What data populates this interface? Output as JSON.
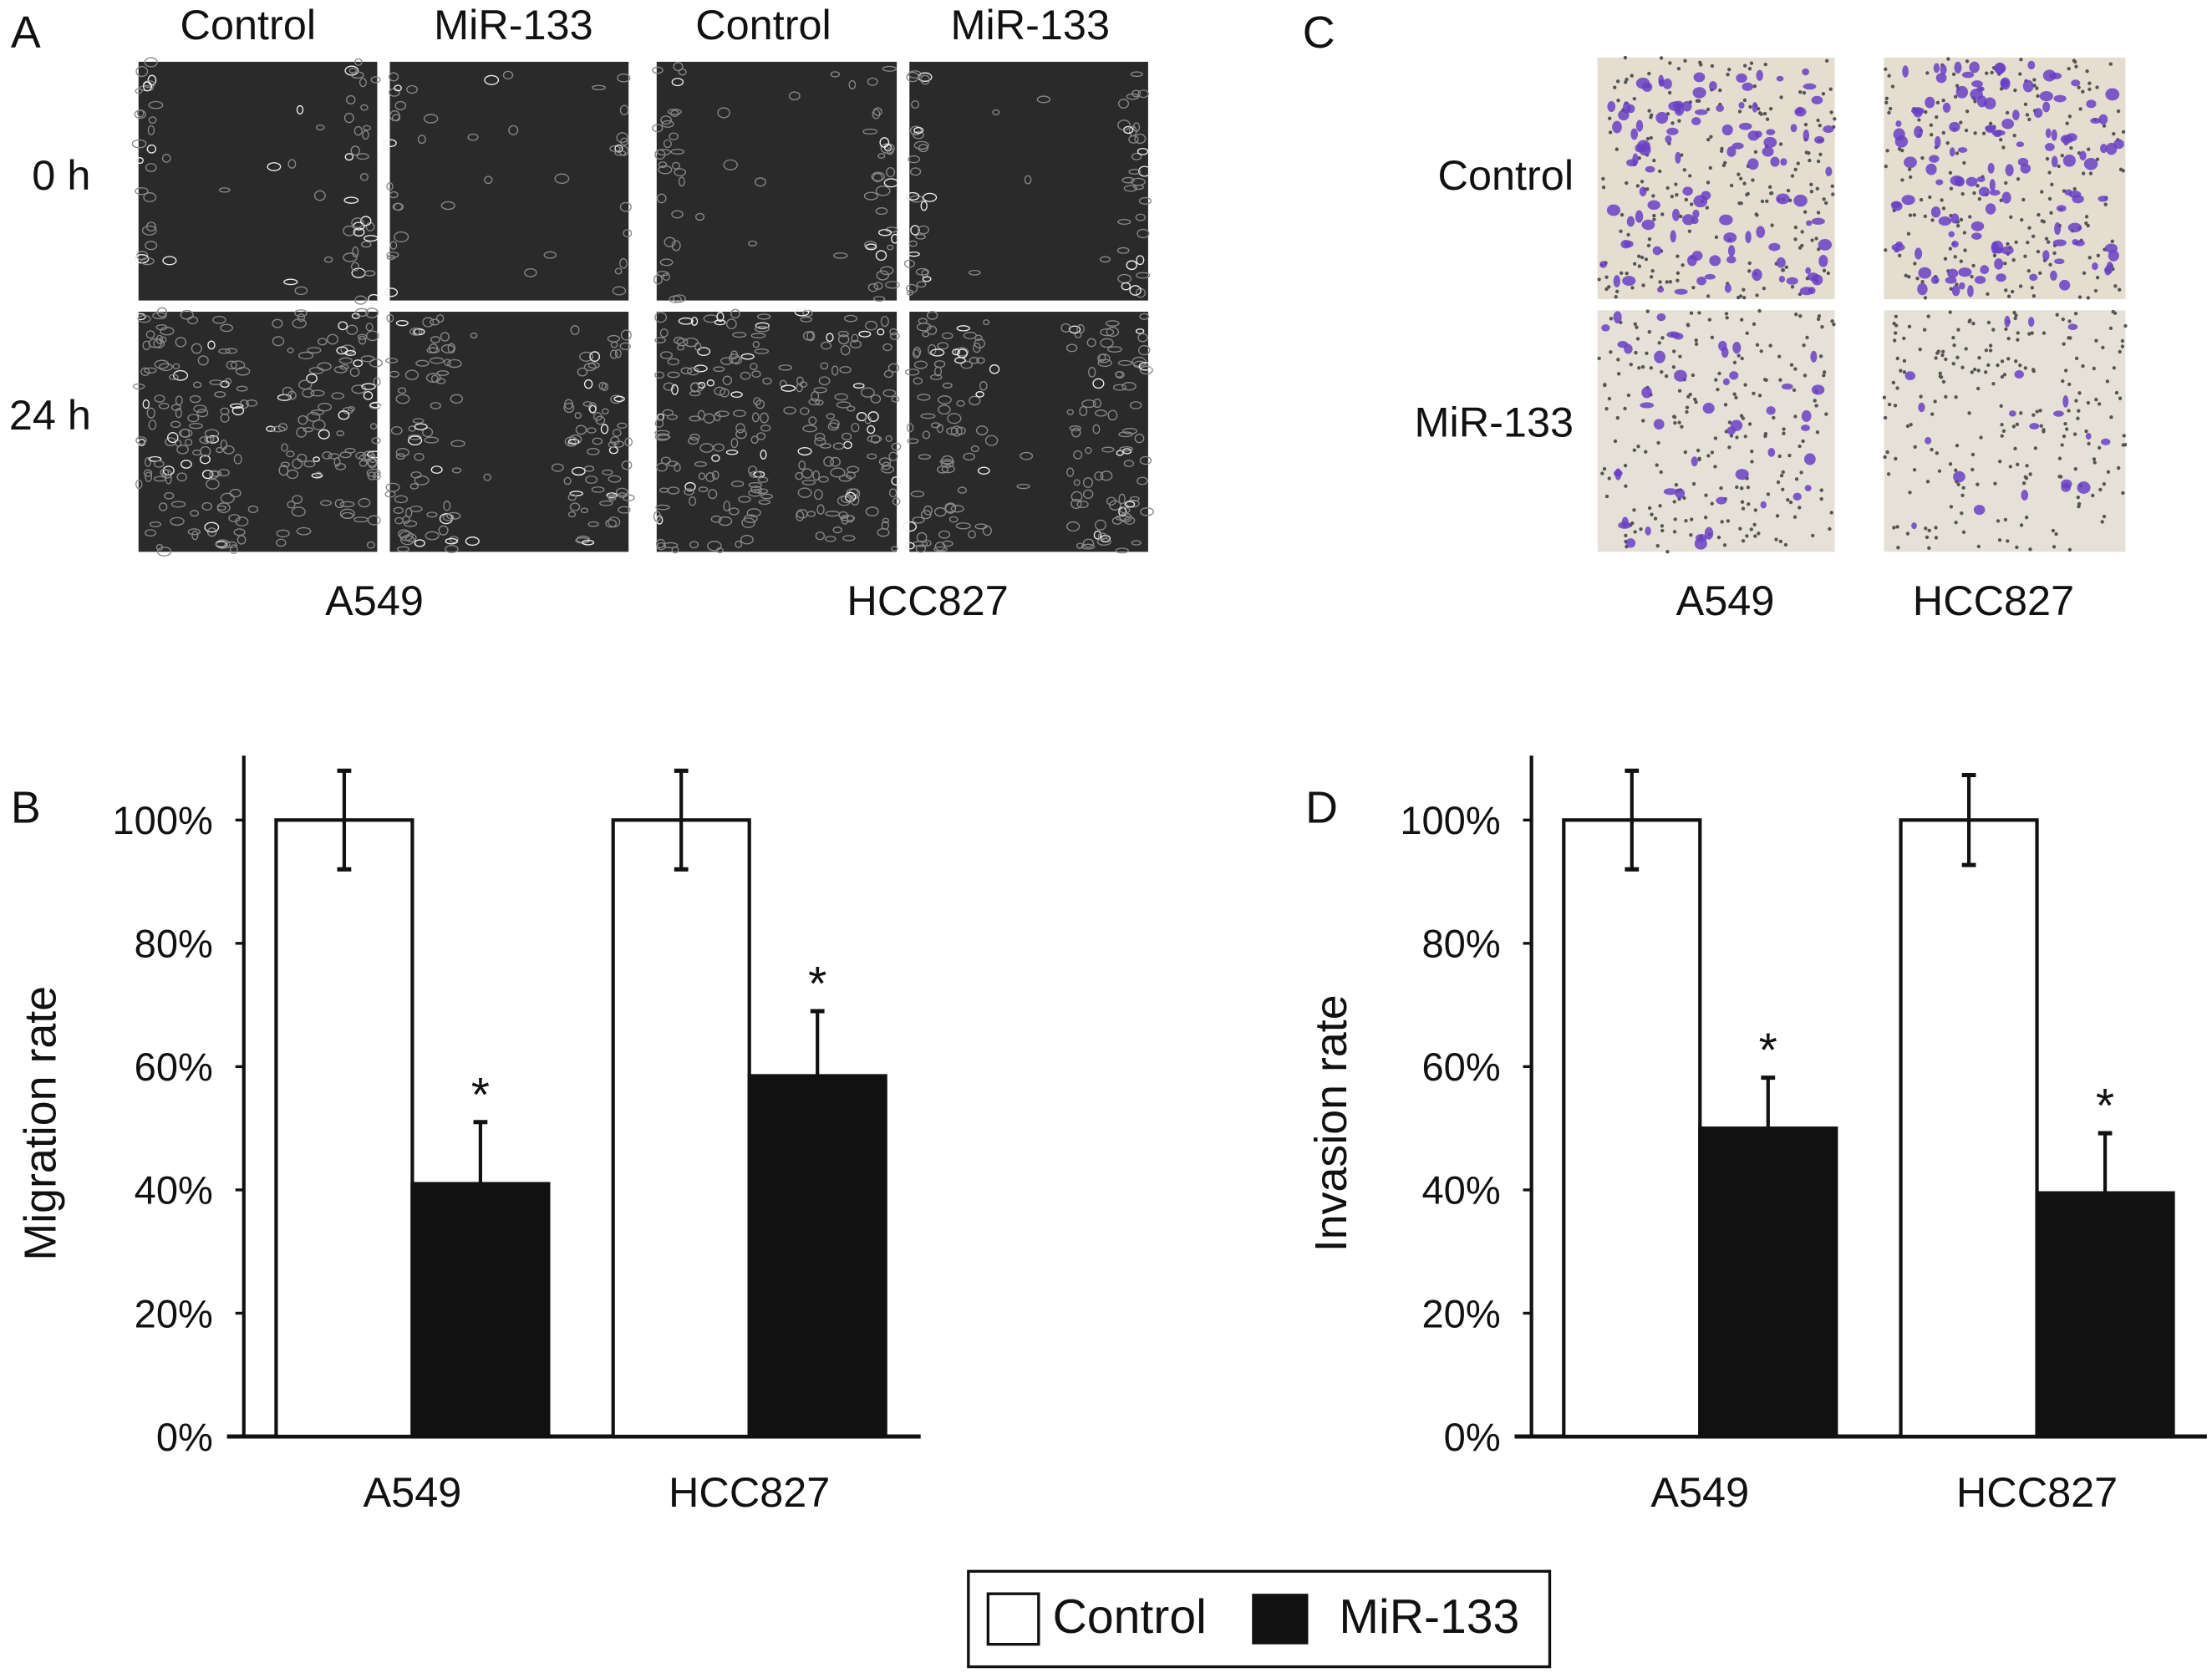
{
  "panels": {
    "A": {
      "letter": "A",
      "column_headers": [
        "Control",
        "MiR-133",
        "Control",
        "MiR-133"
      ],
      "row_labels": [
        "0 h",
        "24 h"
      ],
      "cell_lines": [
        "A549",
        "HCC827"
      ]
    },
    "C": {
      "letter": "C",
      "row_labels": [
        "Control",
        "MiR-133"
      ],
      "cell_lines": [
        "A549",
        "HCC827"
      ]
    },
    "B": {
      "letter": "B"
    },
    "D": {
      "letter": "D"
    }
  },
  "colors": {
    "control": "#ffffff",
    "mir133": "#111111",
    "stain": "#6a3fc4",
    "micrograph": "#2a2a2a"
  },
  "legend": {
    "items": [
      "Control",
      "MiR-133"
    ]
  },
  "chart_data": [
    {
      "type": "bar",
      "panel": "B",
      "ylabel": "Migration rate",
      "categories": [
        "A549",
        "HCC827"
      ],
      "yticks": [
        "0%",
        "20%",
        "40%",
        "60%",
        "80%",
        "100%"
      ],
      "ylim": [
        0,
        110
      ],
      "series": [
        {
          "name": "Control",
          "values": [
            100,
            100
          ],
          "errors": [
            8,
            8
          ]
        },
        {
          "name": "MiR-133",
          "values": [
            41,
            58.5
          ],
          "errors": [
            10,
            10.5
          ]
        }
      ],
      "annotations": {
        "significance": [
          "*",
          "*"
        ]
      }
    },
    {
      "type": "bar",
      "panel": "D",
      "ylabel": "Invasion rate",
      "categories": [
        "A549",
        "HCC827"
      ],
      "yticks": [
        "0%",
        "20%",
        "40%",
        "60%",
        "80%",
        "100%"
      ],
      "ylim": [
        0,
        110
      ],
      "series": [
        {
          "name": "Control",
          "values": [
            100,
            100
          ],
          "errors": [
            8,
            7.3
          ]
        },
        {
          "name": "MiR-133",
          "values": [
            50,
            39.5
          ],
          "errors": [
            8.2,
            9.7
          ]
        }
      ],
      "annotations": {
        "significance": [
          "*",
          "*"
        ]
      }
    }
  ]
}
